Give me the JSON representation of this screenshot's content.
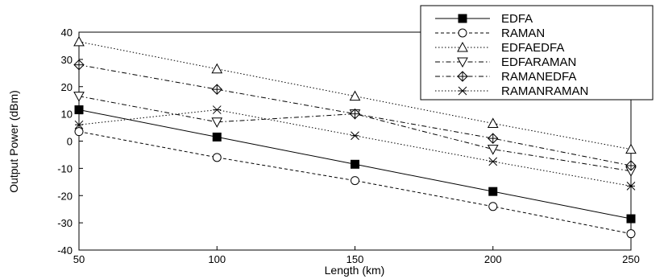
{
  "chart_data": {
    "type": "line",
    "title": "",
    "xlabel": "Length (km)",
    "ylabel": "Output Power (dBm)",
    "xlim": [
      50,
      250
    ],
    "ylim": [
      -40,
      40
    ],
    "x_ticks": [
      50,
      100,
      150,
      200,
      250
    ],
    "y_ticks": [
      -40,
      -30,
      -20,
      -10,
      0,
      10,
      20,
      30,
      40
    ],
    "grid": false,
    "legend_position": "top-right",
    "x": [
      50,
      100,
      150,
      200,
      250
    ],
    "series": [
      {
        "name": "EDFA",
        "values": [
          11.5,
          1.5,
          -8.5,
          -18.5,
          -28.5
        ],
        "marker": "filled-square",
        "dash": "solid"
      },
      {
        "name": "RAMAN",
        "values": [
          3.5,
          -6.0,
          -14.5,
          -24.0,
          -34.0
        ],
        "marker": "open-circle",
        "dash": "dashed"
      },
      {
        "name": "EDFAEDFA",
        "values": [
          36.5,
          26.5,
          16.5,
          6.5,
          -3.0
        ],
        "marker": "up-triangle",
        "dash": "dotted"
      },
      {
        "name": "EDFARAMAN",
        "values": [
          16.5,
          7.0,
          10.0,
          -3.0,
          -11.0
        ],
        "marker": "down-triangle",
        "dash": "dashdot"
      },
      {
        "name": "RAMANEDFA",
        "values": [
          28.0,
          19.0,
          10.0,
          1.0,
          -9.0
        ],
        "marker": "circle-cross",
        "dash": "dashdot"
      },
      {
        "name": "RAMANRAMAN",
        "values": [
          6.0,
          11.5,
          2.0,
          -7.5,
          -16.5
        ],
        "marker": "star",
        "dash": "dotted"
      }
    ]
  }
}
